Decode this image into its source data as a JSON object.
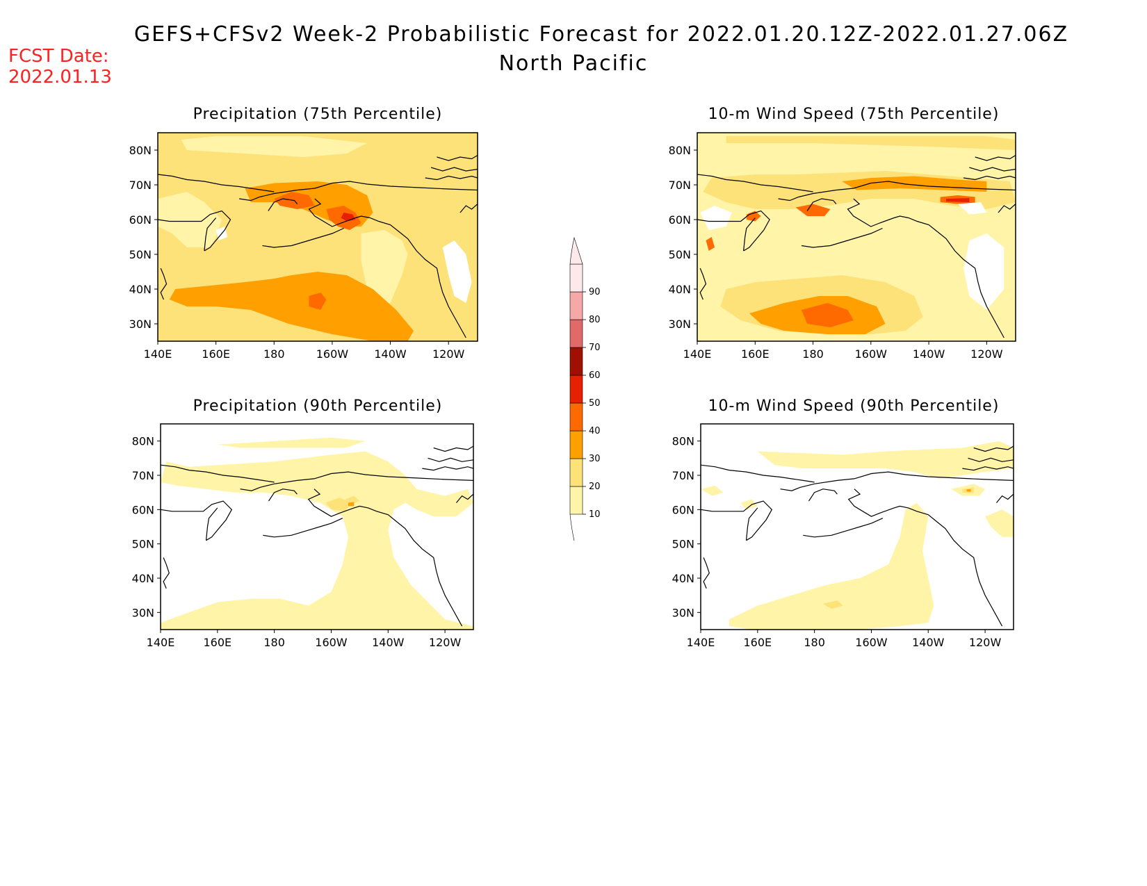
{
  "header": {
    "title": "GEFS+CFSv2 Week-2 Probabilistic Forecast for 2022.01.20.12Z-2022.01.27.06Z",
    "subtitle": "North Pacific",
    "fcst_label": "FCST Date:",
    "fcst_date": "2022.01.13"
  },
  "colorbar": {
    "levels": [
      "10",
      "20",
      "30",
      "40",
      "50",
      "60",
      "70",
      "80",
      "90"
    ],
    "colors": [
      "#fff4a8",
      "#fde27a",
      "#ffa000",
      "#ff6a00",
      "#e62000",
      "#a01000",
      "#e06a6a",
      "#f4a8a8",
      "#fde8ec"
    ]
  },
  "axes": {
    "lon_labels": [
      "140E",
      "160E",
      "180",
      "160W",
      "140W",
      "120W"
    ],
    "lat_labels": [
      "80N",
      "70N",
      "60N",
      "50N",
      "40N",
      "30N"
    ]
  },
  "panels": [
    {
      "id": "precip75",
      "title": "Precipitation (75th Percentile)",
      "background_class": "20-30",
      "max_class": "60-70"
    },
    {
      "id": "wind75",
      "title": "10-m Wind Speed (75th Percentile)",
      "background_class": "10-20",
      "max_class": "50-60"
    },
    {
      "id": "precip90",
      "title": "Precipitation (90th Percentile)",
      "background_class": "0-10",
      "max_class": "30-40"
    },
    {
      "id": "wind90",
      "title": "10-m Wind Speed (90th Percentile)",
      "background_class": "0-10",
      "max_class": "40-50"
    }
  ]
}
